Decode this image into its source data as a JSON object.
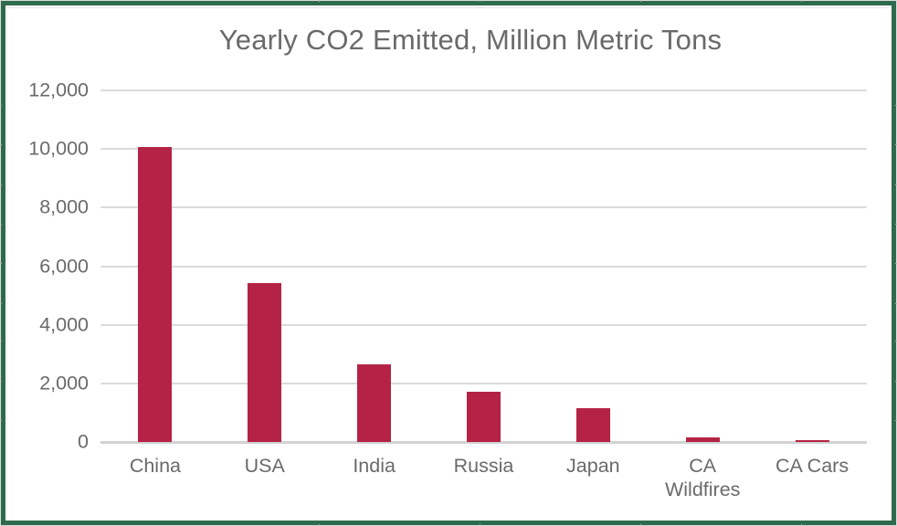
{
  "frame": {
    "border_color": "#2E6B4C"
  },
  "chart_data": {
    "type": "bar",
    "title": "Yearly CO2 Emitted, Million Metric Tons",
    "categories": [
      "China",
      "USA",
      "India",
      "Russia",
      "Japan",
      "CA Wildfires",
      "CA Cars"
    ],
    "values": [
      10065,
      5416,
      2654,
      1711,
      1162,
      150,
      60
    ],
    "xtick_labels": [
      "China",
      "USA",
      "India",
      "Russia",
      "Japan",
      "CA\nWildfires",
      "CA Cars"
    ],
    "ytick_values": [
      0,
      2000,
      4000,
      6000,
      8000,
      10000,
      12000
    ],
    "ytick_labels": [
      "0",
      "2,000",
      "4,000",
      "6,000",
      "8,000",
      "10,000",
      "12,000"
    ],
    "ylim": [
      0,
      12000
    ],
    "xlabel": "",
    "ylabel": "",
    "grid": "horizontal",
    "legend": "none",
    "bar_color": "#B42345",
    "text_color": "#6A6A6A",
    "gridline_color": "#DBDBDB",
    "axis_line_color": "#D2D2D2",
    "background": "#FFFFFF"
  }
}
